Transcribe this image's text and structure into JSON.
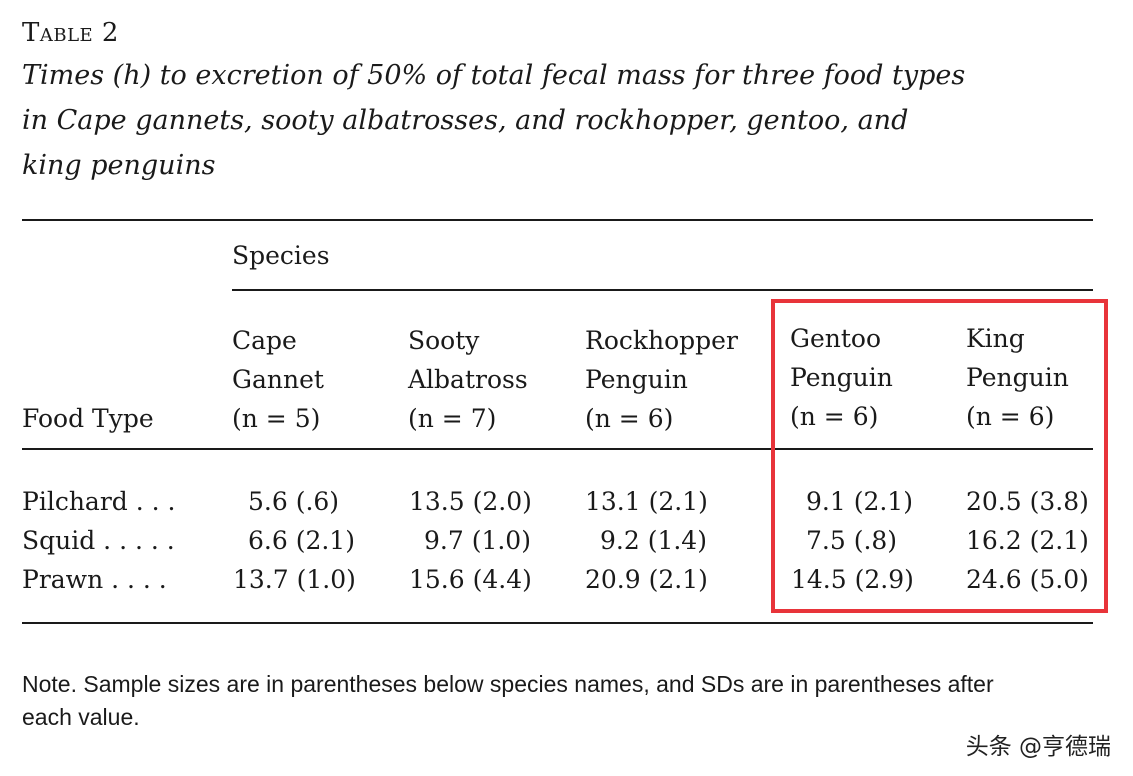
{
  "table_label": "Table 2",
  "caption_lines": [
    "Times (h) to excretion of 50% of total fecal mass for three food types",
    "in Cape gannets, sooty albatrosses, and rockhopper, gentoo, and",
    "king penguins"
  ],
  "species_group_label": "Species",
  "food_type_label": "Food Type",
  "columns": [
    {
      "line1": "Cape",
      "line2": "Gannet",
      "n": "(n = 5)"
    },
    {
      "line1": "Sooty",
      "line2": "Albatross",
      "n": "(n = 7)"
    },
    {
      "line1": "Rockhopper",
      "line2": "Penguin",
      "n": "(n = 6)"
    },
    {
      "line1": "Gentoo",
      "line2": "Penguin",
      "n": "(n = 6)"
    },
    {
      "line1": "King",
      "line2": "Penguin",
      "n": "(n = 6)"
    }
  ],
  "rows": [
    {
      "label": "Pilchard . . .",
      "values": [
        "5.6 (.6)",
        "13.5 (2.0)",
        "13.1 (2.1)",
        "9.1 (2.1)",
        "20.5 (3.8)"
      ]
    },
    {
      "label": "Squid . . . . .",
      "values": [
        "6.6 (2.1)",
        "9.7 (1.0)",
        "9.2 (1.4)",
        "7.5 (.8)",
        "16.2 (2.1)"
      ]
    },
    {
      "label": "Prawn . . . .",
      "values": [
        "13.7 (1.0)",
        "15.6 (4.4)",
        "20.9 (2.1)",
        "14.5 (2.9)",
        "24.6 (5.0)"
      ]
    }
  ],
  "note_lines": [
    "Note. Sample sizes are in parentheses below species names, and SDs are in parentheses after",
    "each value."
  ],
  "watermark": "头条 @亨德瑞",
  "highlight_color": "#e8343a"
}
